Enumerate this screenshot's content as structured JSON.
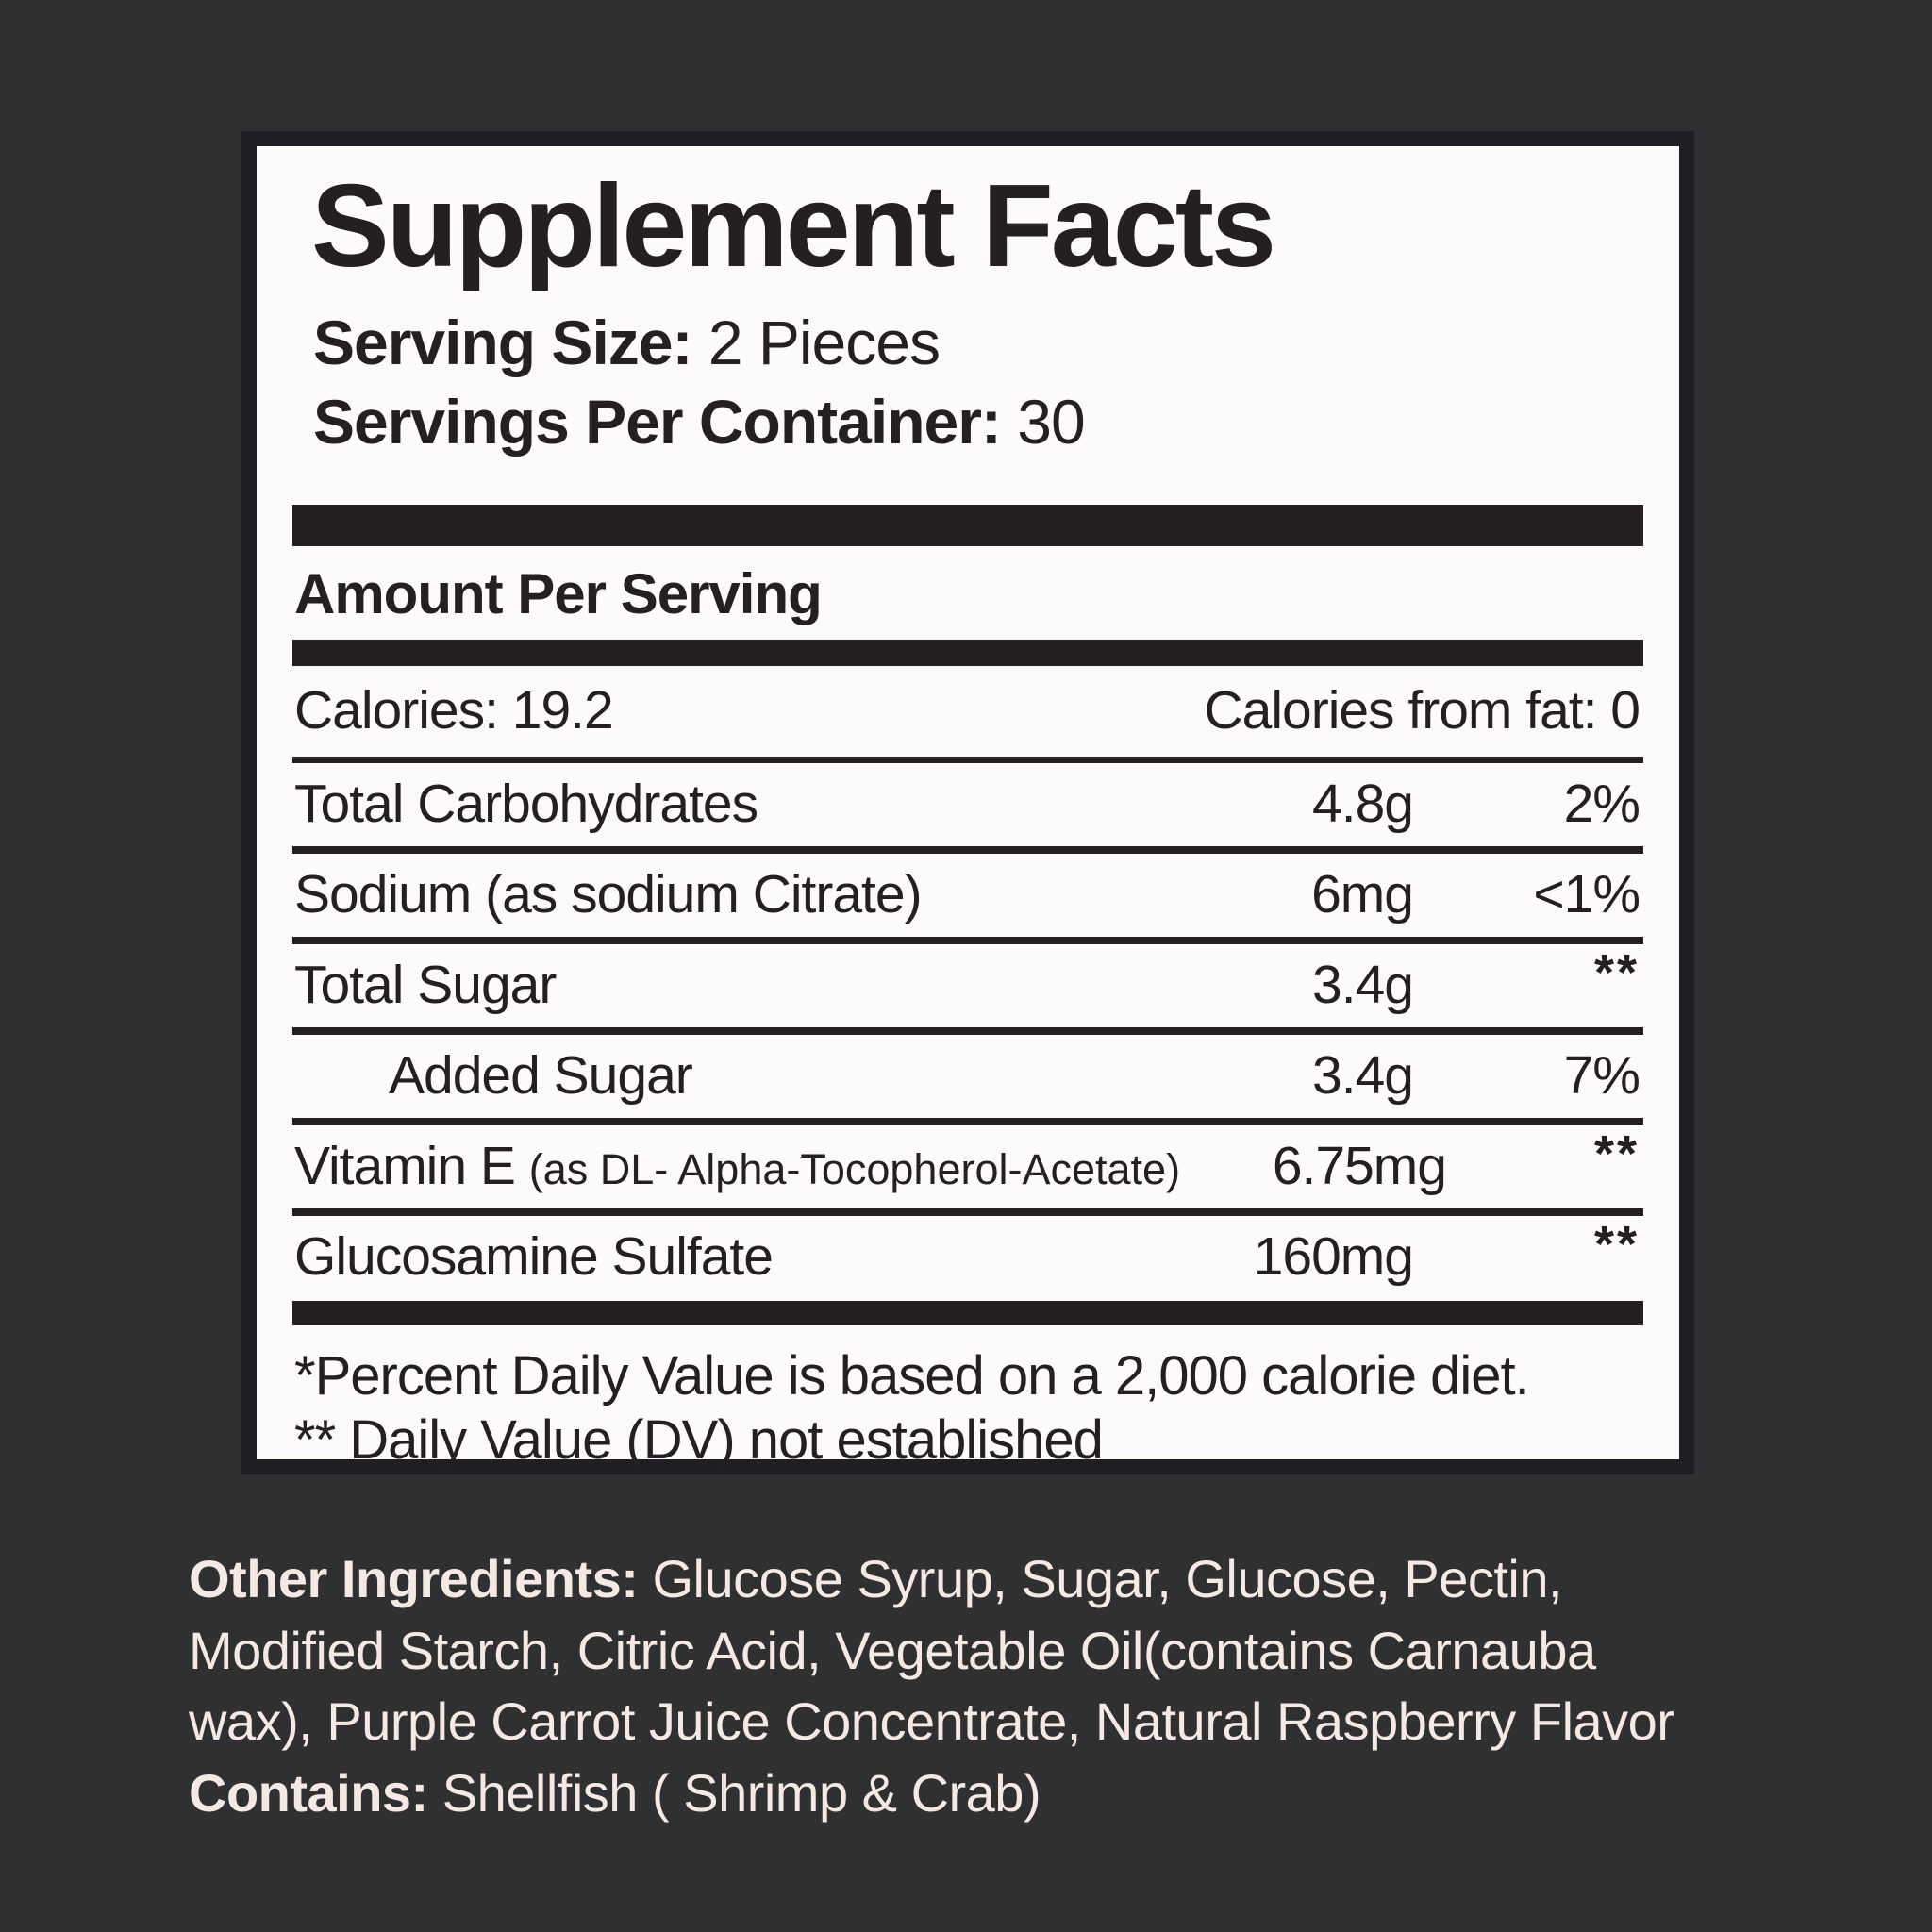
{
  "panel": {
    "title": "Supplement Facts",
    "serving_size": {
      "label": "Serving Size:",
      "value": "2 Pieces"
    },
    "servings_per_container": {
      "label": "Servings Per Container:",
      "value": "30"
    },
    "amount_per_serving": "Amount Per Serving",
    "calories": {
      "label": "Calories:",
      "value": "19.2"
    },
    "calories_from_fat": {
      "label": "Calories from fat:",
      "value": "0"
    },
    "rows": [
      {
        "name": "Total Carbohydrates",
        "amount": "4.8g",
        "dv": "2%"
      },
      {
        "name": "Sodium (as sodium Citrate)",
        "amount": "6mg",
        "dv": "<1%"
      },
      {
        "name": "Total Sugar",
        "amount": "3.4g",
        "dv": "**"
      },
      {
        "name": "Added Sugar",
        "amount": "3.4g",
        "dv": "7%",
        "indent": true
      },
      {
        "name": "Vitamin E",
        "name_suffix": "(as DL- Alpha-Tocopherol-Acetate)",
        "amount": "6.75mg",
        "dv": "**"
      },
      {
        "name": "Glucosamine Sulfate",
        "amount": "160mg",
        "dv": "**"
      }
    ],
    "footnotes": [
      "*Percent Daily Value is based on a 2,000 calorie diet.",
      "** Daily Value (DV) not established"
    ]
  },
  "other_ingredients": {
    "label": "Other Ingredients:",
    "text": "Glucose Syrup, Sugar, Glucose, Pectin, Modified Starch, Citric Acid, Vegetable Oil(contains Carnauba wax), Purple Carrot Juice Concentrate, Natural Raspberry Flavor",
    "contains_label": "Contains:",
    "contains_text": "Shellfish ( Shrimp & Crab)"
  },
  "colors": {
    "page_background": "#2e3032",
    "panel_background": "#fdfbf9",
    "panel_border": "#1d1f22",
    "label_ink": "#242021",
    "light_text": "#f6e8e2"
  }
}
